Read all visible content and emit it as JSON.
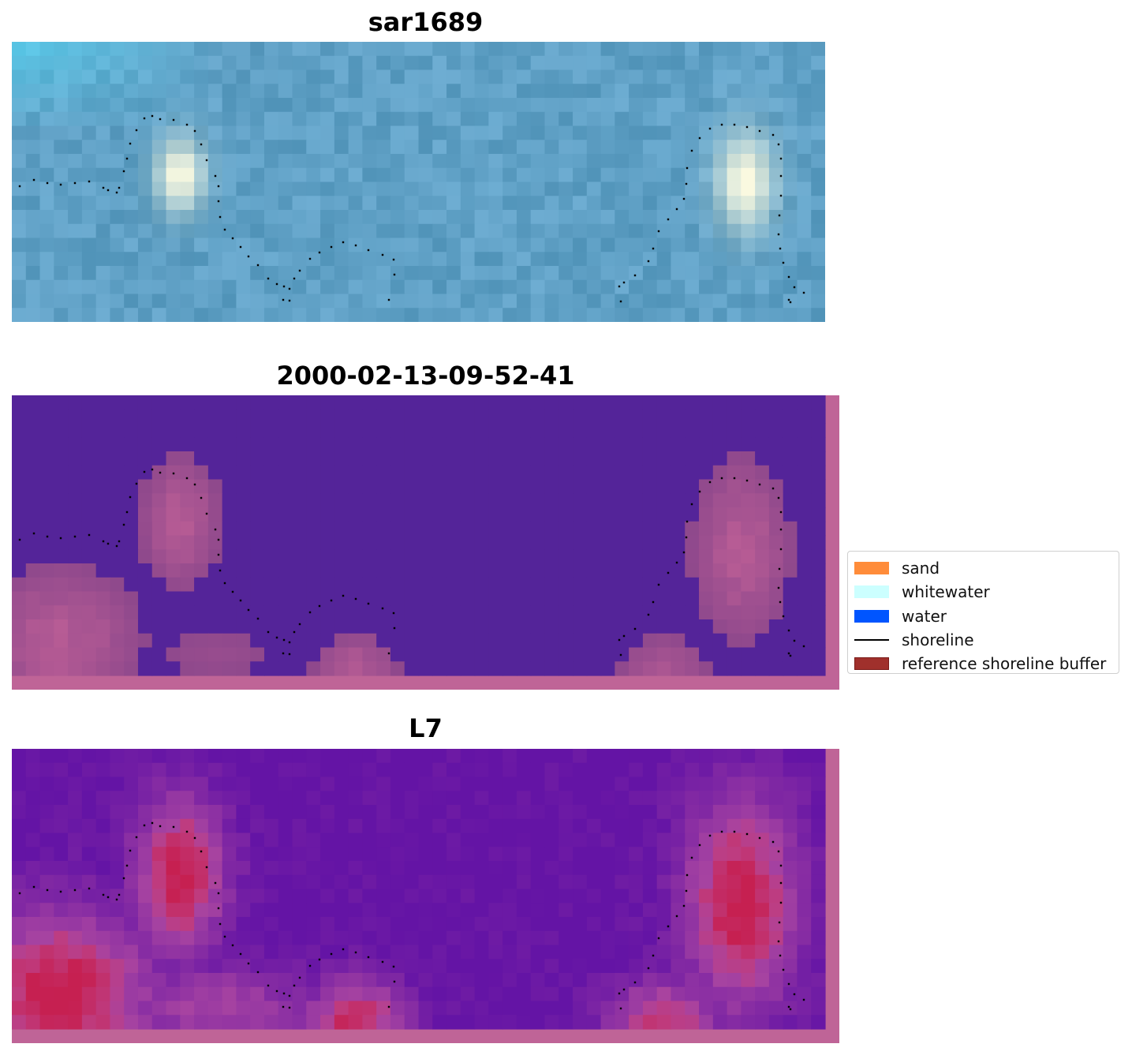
{
  "panels": [
    {
      "title": "sar1689",
      "colormap": "sar"
    },
    {
      "title": "2000-02-13-09-52-41",
      "colormap": "classified"
    },
    {
      "title": "L7",
      "colormap": "index"
    }
  ],
  "legend": {
    "items": [
      {
        "label": "sand",
        "color": "#ff8c3a",
        "kind": "patch"
      },
      {
        "label": "whitewater",
        "color": "#ccffff",
        "kind": "patch"
      },
      {
        "label": "water",
        "color": "#0055ff",
        "kind": "patch"
      },
      {
        "label": "shoreline",
        "color": "#000000",
        "kind": "line"
      },
      {
        "label": "reference shoreline buffer",
        "color": "#a0302c",
        "kind": "patch",
        "edge": "#7a1a18"
      }
    ]
  },
  "colors": {
    "water_overlay": "#542499",
    "buffer_overlay": "#bf6497",
    "sar_base": "#5fa0c5",
    "shoreline": "#000000"
  }
}
